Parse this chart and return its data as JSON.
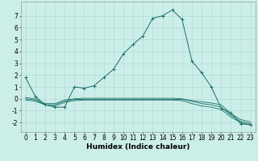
{
  "title": "",
  "xlabel": "Humidex (Indice chaleur)",
  "ylabel": "",
  "background_color": "#cceee8",
  "grid_color": "#aad8d0",
  "line_color": "#1a6e6a",
  "xlim": [
    -0.5,
    23.5
  ],
  "ylim": [
    -2.8,
    8.2
  ],
  "xticks": [
    0,
    1,
    2,
    3,
    4,
    5,
    6,
    7,
    8,
    9,
    10,
    11,
    12,
    13,
    14,
    15,
    16,
    17,
    18,
    19,
    20,
    21,
    22,
    23
  ],
  "yticks": [
    -2,
    -1,
    0,
    1,
    2,
    3,
    4,
    5,
    6,
    7
  ],
  "curve1_x": [
    0,
    1,
    2,
    3,
    4,
    5,
    6,
    7,
    8,
    9,
    10,
    11,
    12,
    13,
    14,
    15,
    16,
    17,
    18,
    19,
    20,
    21,
    22,
    23
  ],
  "curve1_y": [
    1.8,
    0.2,
    -0.5,
    -0.7,
    -0.7,
    1.0,
    0.9,
    1.1,
    1.8,
    2.5,
    3.8,
    4.6,
    5.3,
    6.8,
    7.0,
    7.5,
    6.7,
    3.2,
    2.2,
    1.0,
    -0.8,
    -1.2,
    -2.1,
    -2.2
  ],
  "curve2_x": [
    0,
    1,
    2,
    3,
    4,
    5,
    6,
    7,
    8,
    9,
    10,
    11,
    12,
    13,
    14,
    15,
    16,
    17,
    18,
    19,
    20,
    21,
    22,
    23
  ],
  "curve2_y": [
    0.0,
    -0.1,
    -0.5,
    -0.5,
    -0.2,
    -0.05,
    -0.05,
    -0.05,
    -0.05,
    -0.05,
    -0.05,
    -0.05,
    -0.05,
    -0.05,
    -0.05,
    -0.05,
    -0.05,
    -0.2,
    -0.4,
    -0.5,
    -0.7,
    -1.4,
    -1.9,
    -2.1
  ],
  "curve3_x": [
    0,
    1,
    2,
    3,
    4,
    5,
    6,
    7,
    8,
    9,
    10,
    11,
    12,
    13,
    14,
    15,
    16,
    17,
    18,
    19,
    20,
    21,
    22,
    23
  ],
  "curve3_y": [
    -0.1,
    -0.2,
    -0.5,
    -0.6,
    -0.3,
    -0.15,
    -0.1,
    -0.1,
    -0.1,
    -0.1,
    -0.1,
    -0.1,
    -0.1,
    -0.1,
    -0.1,
    -0.1,
    -0.15,
    -0.4,
    -0.6,
    -0.7,
    -0.9,
    -1.55,
    -2.0,
    -2.2
  ],
  "curve4_x": [
    0,
    1,
    2,
    3,
    4,
    5,
    6,
    7,
    8,
    9,
    10,
    11,
    12,
    13,
    14,
    15,
    16,
    17,
    18,
    19,
    20,
    21,
    22,
    23
  ],
  "curve4_y": [
    0.1,
    0.0,
    -0.4,
    -0.4,
    -0.1,
    0.0,
    0.05,
    0.05,
    0.05,
    0.05,
    0.05,
    0.05,
    0.05,
    0.05,
    0.05,
    0.05,
    0.0,
    -0.15,
    -0.25,
    -0.35,
    -0.5,
    -1.25,
    -1.75,
    -1.95
  ],
  "xlabel_fontsize": 6.5,
  "tick_fontsize": 5.5
}
